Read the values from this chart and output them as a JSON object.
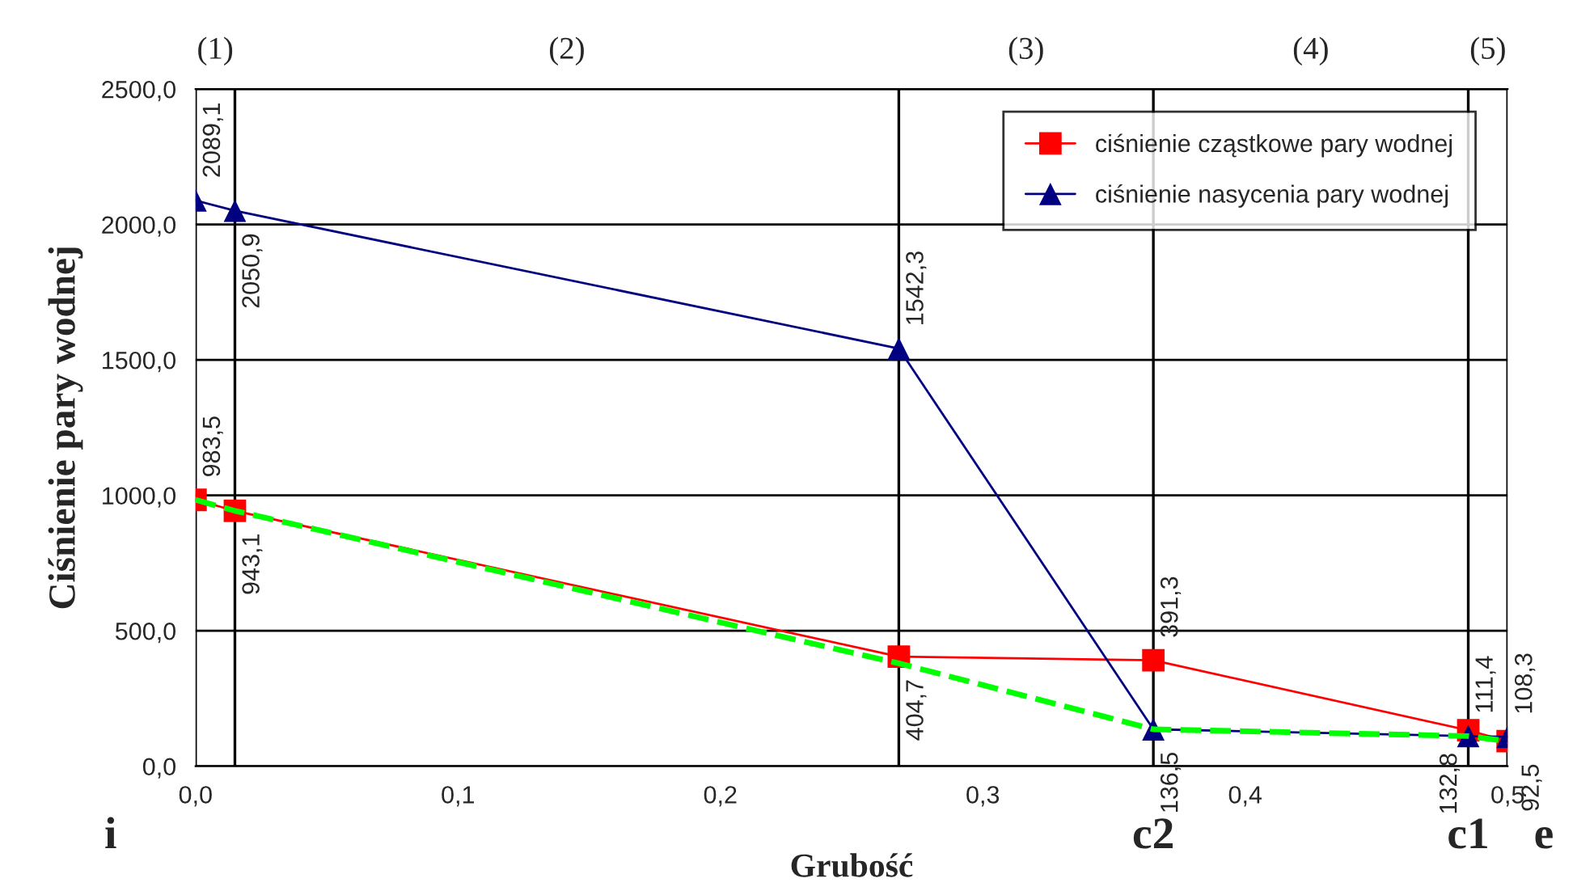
{
  "chart_data": {
    "type": "line",
    "xlabel": "Grubość",
    "ylabel": "Ciśnienie pary wodnej",
    "x": [
      0,
      0.015,
      0.268,
      0.365,
      0.485,
      0.5
    ],
    "series": [
      {
        "name": "ciśnienie cząstkowe pary wodnej",
        "color": "#ff0000",
        "marker": "square",
        "values": [
          983.5,
          943.1,
          404.7,
          391.3,
          132.8,
          92.5
        ],
        "value_labels": [
          "983,5",
          "943,1",
          "404,7",
          "391,3",
          "132,8",
          "92,5"
        ]
      },
      {
        "name": "ciśnienie nasycenia pary wodnej",
        "color": "#000080",
        "marker": "triangle",
        "values": [
          2089.1,
          2050.9,
          1542.3,
          136.5,
          111.4,
          108.3
        ],
        "value_labels": [
          "2089,1",
          "2050,9",
          "1542,3",
          "136,5",
          "111,4",
          "108,3"
        ]
      },
      {
        "color": "#00ff00",
        "line_style": "dashed",
        "marker": "none",
        "values": [
          983.5,
          943.1,
          380,
          136.5,
          111.4,
          92.5
        ]
      }
    ],
    "xlim": [
      0,
      0.5
    ],
    "xticks": [
      {
        "value": 0,
        "label": "0,0"
      },
      {
        "value": 0.1,
        "label": "0,1"
      },
      {
        "value": 0.2,
        "label": "0,2"
      },
      {
        "value": 0.3,
        "label": "0,3"
      },
      {
        "value": 0.4,
        "label": "0,4"
      },
      {
        "value": 0.5,
        "label": "0,5"
      }
    ],
    "ylim": [
      0,
      2500
    ],
    "yticks": [
      {
        "value": 0,
        "label": "0,0"
      },
      {
        "value": 500,
        "label": "500,0"
      },
      {
        "value": 1000,
        "label": "1000,0"
      },
      {
        "value": 1500,
        "label": "1500,0"
      },
      {
        "value": 2000,
        "label": "2000,0"
      },
      {
        "value": 2500,
        "label": "2500,0"
      }
    ],
    "grid": "y",
    "legend": "top right",
    "ref_lines": [
      {
        "axis": "x",
        "value": 0,
        "label": "i",
        "color": "#000000"
      },
      {
        "axis": "x",
        "value": 0.015,
        "color": "#000000"
      },
      {
        "axis": "x",
        "value": 0.268,
        "color": "#000000"
      },
      {
        "axis": "x",
        "value": 0.365,
        "label": "c2",
        "color": "#000000"
      },
      {
        "axis": "x",
        "value": 0.485,
        "label": "c1",
        "color": "#000000"
      },
      {
        "axis": "x",
        "value": 0.5,
        "label": "e",
        "color": "#000000"
      }
    ],
    "annotations": [
      "(1)",
      "(2)",
      "(3)",
      "(4)",
      "(5)"
    ]
  }
}
